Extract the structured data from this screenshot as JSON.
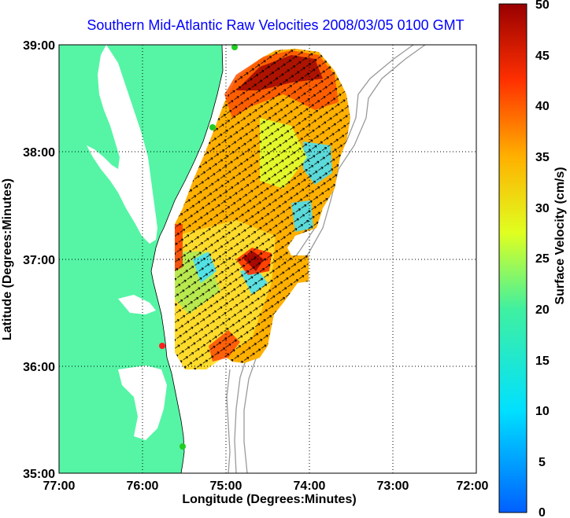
{
  "title": "Southern Mid-Atlantic Raw Velocities 2008/03/05 0100 GMT",
  "map": {
    "xlabel": "Longitude (Degrees:Minutes)",
    "ylabel": "Latitude (Degrees:Minutes)",
    "x_ticks": [
      "77:00",
      "76:00",
      "75:00",
      "74:00",
      "73:00",
      "72:00"
    ],
    "y_ticks": [
      "39:00",
      "38:00",
      "37:00",
      "36:00",
      "35:00"
    ],
    "lon_range": [
      -77,
      -72
    ],
    "lat_range": [
      35,
      39
    ],
    "colors": {
      "land": "#55f5a5",
      "water": "#ffffff",
      "grid": "#000000",
      "bathymetry": "#9a9a9a",
      "station_green": "#22cc22",
      "station_red": "#ff2020"
    }
  },
  "colorbar": {
    "label": "Surface Velocity (cm/s)",
    "ticks": [
      "50",
      "45",
      "40",
      "35",
      "30",
      "25",
      "20",
      "15",
      "10",
      "5",
      "0"
    ],
    "range": [
      0,
      50
    ]
  }
}
